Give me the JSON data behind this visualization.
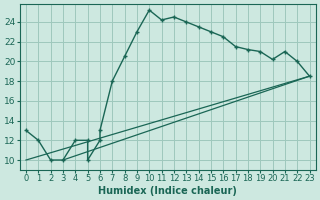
{
  "xlabel": "Humidex (Indice chaleur)",
  "bg_color": "#cde8e0",
  "grid_color": "#9ec8bc",
  "line_color": "#1a6655",
  "xlim": [
    -0.5,
    23.5
  ],
  "ylim": [
    9.0,
    25.8
  ],
  "xticks": [
    0,
    1,
    2,
    3,
    4,
    5,
    6,
    7,
    8,
    9,
    10,
    11,
    12,
    13,
    14,
    15,
    16,
    17,
    18,
    19,
    20,
    21,
    22,
    23
  ],
  "yticks": [
    10,
    12,
    14,
    16,
    18,
    20,
    22,
    24
  ],
  "curve_x": [
    0,
    1,
    2,
    3,
    4,
    5,
    5,
    6,
    6,
    7,
    8,
    9,
    10,
    11,
    12,
    13,
    14,
    15,
    16,
    17,
    18,
    19,
    20,
    21,
    22,
    23
  ],
  "curve_y": [
    13,
    12,
    10,
    10,
    12,
    12,
    10,
    12,
    13,
    18,
    20.5,
    23,
    25.2,
    24.2,
    24.5,
    24.0,
    23.5,
    23.0,
    22.5,
    21.5,
    21.2,
    21.0,
    20.2,
    21.0,
    20.0,
    18.5
  ],
  "line1_x": [
    0,
    23
  ],
  "line1_y": [
    10,
    18.5
  ],
  "line2_x": [
    3,
    23
  ],
  "line2_y": [
    10,
    18.5
  ]
}
